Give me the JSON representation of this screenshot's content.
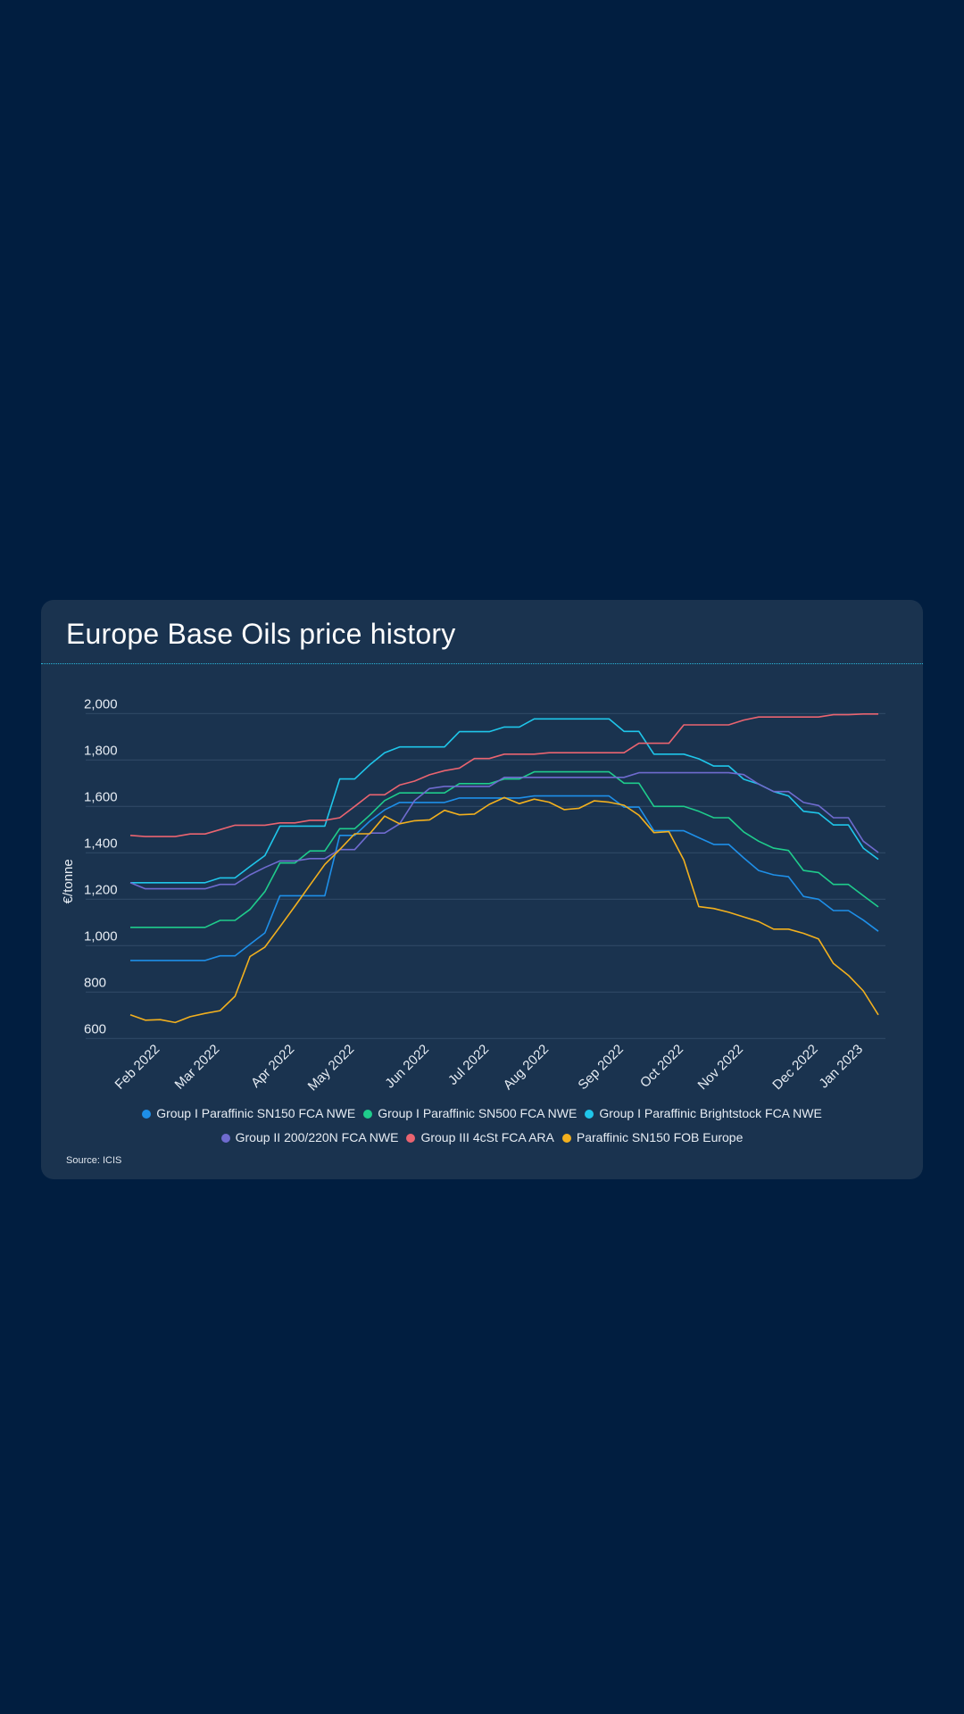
{
  "card": {
    "title": "Europe Base Oils price history",
    "source": "Source: ICIS"
  },
  "chart_data": {
    "type": "line",
    "title": "Europe Base Oils price history",
    "xlabel": "",
    "ylabel": "€/tonne",
    "ylim": [
      600,
      2000
    ],
    "yticks": [
      600,
      800,
      1000,
      1200,
      1400,
      1600,
      1800,
      2000
    ],
    "ytick_labels": [
      "600",
      "800",
      "1,000",
      "1,200",
      "1,400",
      "1,600",
      "1,800",
      "2,000"
    ],
    "grid": true,
    "legend_position": "bottom-center",
    "x_count": 51,
    "x_frequency": "weekly",
    "xticks": [
      {
        "index": 2,
        "label": "Feb 2022"
      },
      {
        "index": 6,
        "label": "Mar 2022"
      },
      {
        "index": 11,
        "label": "Apr 2022"
      },
      {
        "index": 15,
        "label": "May 2022"
      },
      {
        "index": 20,
        "label": "Jun 2022"
      },
      {
        "index": 24,
        "label": "Jul 2022"
      },
      {
        "index": 28,
        "label": "Aug 2022"
      },
      {
        "index": 33,
        "label": "Sep 2022"
      },
      {
        "index": 37,
        "label": "Oct 2022"
      },
      {
        "index": 41,
        "label": "Nov 2022"
      },
      {
        "index": 46,
        "label": "Dec 2022"
      },
      {
        "index": 49,
        "label": "Jan 2023"
      }
    ],
    "series": [
      {
        "name": "Group I Paraffinic SN150 FCA NWE",
        "color": "#1e8fe8",
        "values": [
          936,
          936,
          936,
          936,
          936,
          936,
          956,
          956,
          1006,
          1055,
          1215,
          1215,
          1215,
          1215,
          1475,
          1475,
          1536,
          1585,
          1617,
          1617,
          1617,
          1617,
          1636,
          1636,
          1636,
          1636,
          1636,
          1645,
          1645,
          1645,
          1645,
          1645,
          1645,
          1597,
          1597,
          1495,
          1495,
          1495,
          1465,
          1436,
          1436,
          1378,
          1324,
          1305,
          1297,
          1212,
          1200,
          1151,
          1151,
          1110,
          1062
        ]
      },
      {
        "name": "Group I Paraffinic SN500 FCA NWE",
        "color": "#1fcc8c",
        "values": [
          1079,
          1079,
          1079,
          1079,
          1079,
          1079,
          1109,
          1109,
          1156,
          1233,
          1356,
          1356,
          1408,
          1408,
          1504,
          1504,
          1562,
          1625,
          1658,
          1658,
          1658,
          1658,
          1698,
          1698,
          1698,
          1718,
          1718,
          1749,
          1749,
          1749,
          1749,
          1749,
          1749,
          1700,
          1700,
          1600,
          1600,
          1600,
          1579,
          1551,
          1551,
          1490,
          1450,
          1420,
          1410,
          1324,
          1315,
          1264,
          1264,
          1215,
          1167
        ]
      },
      {
        "name": "Group I Paraffinic Brightstock FCA NWE",
        "color": "#1fc6ea",
        "values": [
          1271,
          1271,
          1271,
          1271,
          1271,
          1271,
          1292,
          1292,
          1341,
          1388,
          1515,
          1515,
          1515,
          1515,
          1718,
          1718,
          1779,
          1831,
          1856,
          1856,
          1856,
          1856,
          1922,
          1922,
          1922,
          1942,
          1942,
          1977,
          1977,
          1977,
          1977,
          1977,
          1977,
          1923,
          1923,
          1825,
          1825,
          1825,
          1805,
          1774,
          1774,
          1717,
          1696,
          1664,
          1645,
          1579,
          1571,
          1520,
          1520,
          1420,
          1372
        ]
      },
      {
        "name": "Group II 200/220N FCA NWE",
        "color": "#6f6bcf",
        "values": [
          1271,
          1245,
          1245,
          1245,
          1245,
          1245,
          1264,
          1264,
          1305,
          1337,
          1365,
          1365,
          1375,
          1375,
          1414,
          1414,
          1485,
          1485,
          1525,
          1625,
          1677,
          1686,
          1686,
          1686,
          1686,
          1725,
          1725,
          1725,
          1725,
          1725,
          1725,
          1725,
          1725,
          1725,
          1745,
          1745,
          1745,
          1745,
          1745,
          1745,
          1745,
          1737,
          1696,
          1664,
          1664,
          1617,
          1604,
          1551,
          1551,
          1450,
          1401
        ]
      },
      {
        "name": "Group III 4cSt FCA ARA",
        "color": "#ea6470",
        "values": [
          1475,
          1470,
          1470,
          1470,
          1481,
          1481,
          1500,
          1519,
          1519,
          1519,
          1529,
          1529,
          1540,
          1540,
          1551,
          1600,
          1650,
          1650,
          1692,
          1709,
          1736,
          1754,
          1765,
          1806,
          1806,
          1825,
          1825,
          1825,
          1831,
          1831,
          1831,
          1831,
          1831,
          1831,
          1872,
          1872,
          1872,
          1951,
          1951,
          1951,
          1951,
          1972,
          1985,
          1985,
          1985,
          1985,
          1985,
          1995,
          1995,
          1998,
          1998
        ]
      },
      {
        "name": "Paraffinic SN150 FOB Europe",
        "color": "#f2b01e",
        "values": [
          702,
          679,
          681,
          669,
          694,
          708,
          720,
          782,
          953,
          994,
          1081,
          1170,
          1260,
          1350,
          1414,
          1482,
          1482,
          1558,
          1525,
          1538,
          1542,
          1583,
          1564,
          1567,
          1609,
          1638,
          1612,
          1631,
          1618,
          1586,
          1592,
          1624,
          1618,
          1605,
          1562,
          1487,
          1491,
          1369,
          1168,
          1160,
          1144,
          1124,
          1104,
          1071,
          1071,
          1053,
          1029,
          923,
          872,
          805,
          702
        ]
      }
    ]
  }
}
